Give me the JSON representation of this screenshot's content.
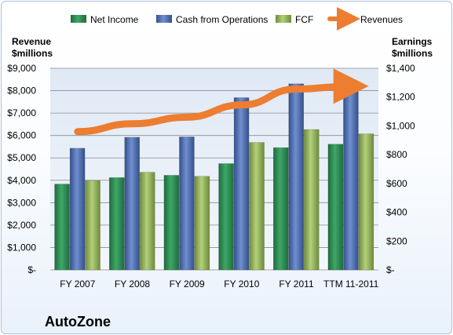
{
  "chart_data": {
    "type": "bar",
    "categories": [
      "FY 2007",
      "FY 2008",
      "FY 2009",
      "FY 2010",
      "FY 2011",
      "TTM 11-2011"
    ],
    "series": [
      {
        "name": "Net Income",
        "axis": "right",
        "kind": "bar",
        "color": "#2e8b57",
        "values": [
          596,
          641,
          657,
          738,
          849,
          873
        ]
      },
      {
        "name": "Cash from Operations",
        "axis": "right",
        "kind": "bar",
        "color": "#4f73b8",
        "values": [
          845,
          921,
          924,
          1196,
          1292,
          1276
        ]
      },
      {
        "name": "FCF",
        "axis": "right",
        "kind": "bar",
        "color": "#9bbb59",
        "values": [
          620,
          678,
          650,
          885,
          975,
          945
        ]
      },
      {
        "name": "Revenues",
        "axis": "left",
        "kind": "line",
        "color": "#ed7d31",
        "values": [
          6170,
          6523,
          6817,
          7363,
          8073,
          8200
        ]
      }
    ],
    "left_axis": {
      "title_line1": "Revenue",
      "title_line2": "$millions",
      "ylim": [
        0,
        9000
      ],
      "ticks": [
        "$-",
        "$1,000",
        "$2,000",
        "$3,000",
        "$4,000",
        "$5,000",
        "$6,000",
        "$7,000",
        "$8,000",
        "$9,000"
      ]
    },
    "right_axis": {
      "title_line1": "Earnings",
      "title_line2": "$millions",
      "ylim": [
        0,
        1400
      ],
      "ticks": [
        "$-",
        "$200",
        "$400",
        "$600",
        "$800",
        "$1,000",
        "$1,200",
        "$1,400"
      ]
    },
    "legend_position": "top",
    "grid": true,
    "caption": "AutoZone"
  }
}
